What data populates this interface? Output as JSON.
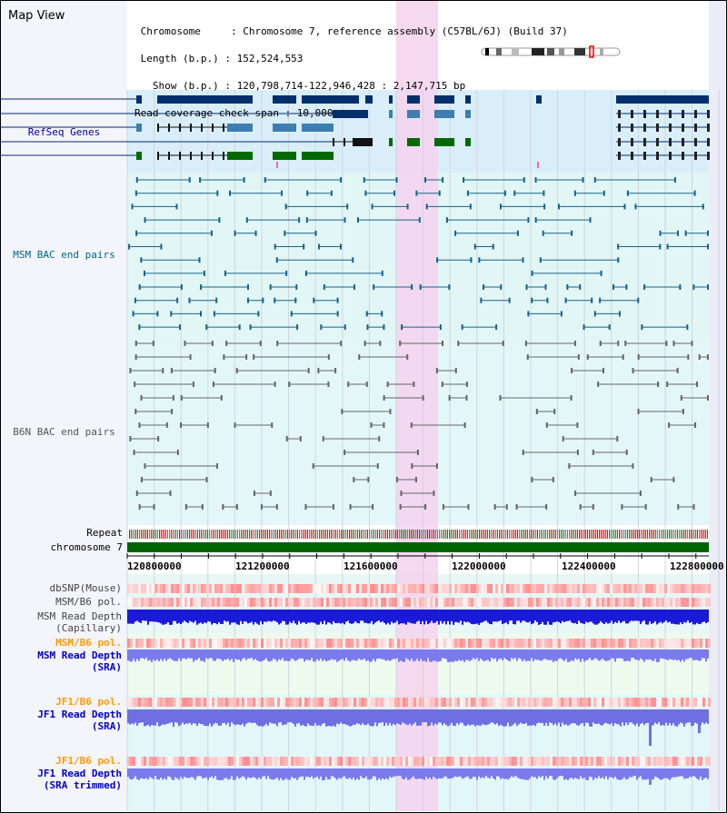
{
  "title": "Map View",
  "info_lines": [
    " Chromosome     : Chromosome 7, reference assembly (C57BL/6J) (Build 37)",
    " Length (b.p.) : 152,524,553",
    "   Show (b.p.) : 120,798,714-122,946,428 : 2,147,715 bp",
    "Read coverage check span : 10,000"
  ],
  "tracks": {
    "refseq": {
      "label": "RefSeq Genes",
      "color": "#0000aa"
    },
    "msm_bac": {
      "label": "MSM BAC end pairs",
      "color": "#006688"
    },
    "b6n_bac": {
      "label": "B6N BAC end pairs",
      "color": "#555555"
    },
    "repeat": {
      "label": "Repeat",
      "color": "#000000"
    },
    "chromosome": {
      "label": "chromosome 7",
      "color": "#000000"
    },
    "dbsnp": {
      "label": "dbSNP(Mouse)",
      "color": "#444444"
    },
    "msm_pol_cap": {
      "label": "MSM/B6 pol.",
      "color": "#444444"
    },
    "msm_depth_cap": {
      "label": "MSM Read Depth\n(Capillary)",
      "color": "#444444"
    },
    "msm_pol_sra": {
      "label": "MSM/B6 pol.",
      "color": "#ff9900"
    },
    "msm_depth_sra": {
      "label": "MSM Read Depth\n(SRA)",
      "color": "#0000cc"
    },
    "jf1_pol": {
      "label": "JF1/B6 pol.",
      "color": "#ff9900"
    },
    "jf1_depth": {
      "label": "JF1 Read Depth\n(SRA)",
      "color": "#0000cc"
    },
    "jf1_pol2": {
      "label": "JF1/B6 pol.",
      "color": "#ff9900"
    },
    "jf1_depth_trim": {
      "label": "JF1 Read Depth\n(SRA trimmed)",
      "color": "#0000cc"
    }
  },
  "axis_ticks": [
    "120800000",
    "121200000",
    "121600000",
    "122000000",
    "122400000",
    "122800000"
  ],
  "colors": {
    "refseq_dark": "#002f6c",
    "refseq_mid": "#3c7fb0",
    "refseq_green": "#006a00",
    "msm_bac": "#16648a",
    "b6n_bac": "#666666",
    "highlight": "#f5d2ee",
    "chromosome_bar": "#006400",
    "read_depth": "#1a1ad8"
  }
}
